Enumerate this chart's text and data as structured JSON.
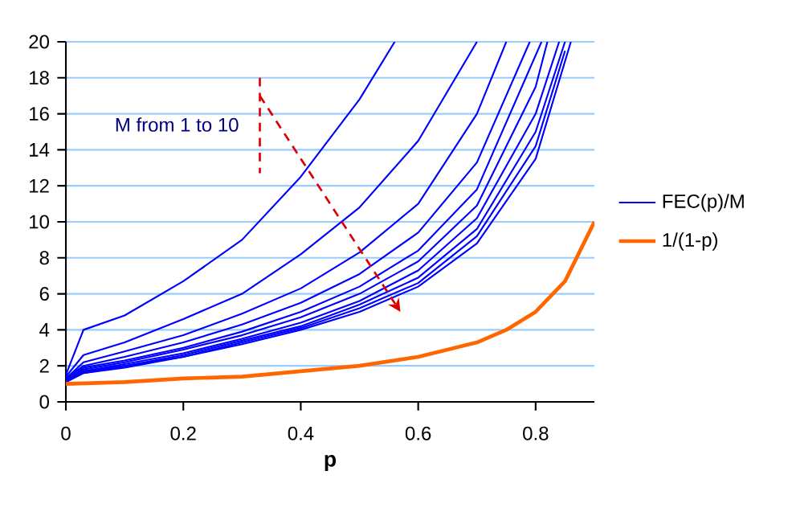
{
  "chart_data": {
    "type": "line",
    "xlabel": "p",
    "xlim": [
      0,
      0.9
    ],
    "ylim": [
      0,
      20
    ],
    "xticks": [
      0,
      0.2,
      0.4,
      0.6,
      0.8
    ],
    "yticks": [
      0,
      2,
      4,
      6,
      8,
      10,
      12,
      14,
      16,
      18,
      20
    ],
    "grid": "y",
    "legend": "right",
    "marker": "none",
    "line_style": "solid",
    "annotations": [
      "M from 1 to 10"
    ],
    "series": [
      {
        "name": "FEC(p)/M",
        "color": "#0000ff",
        "x": [
          0,
          0.03,
          0.1,
          0.2,
          0.3,
          0.4,
          0.5,
          0.56
        ],
        "values": [
          1.5,
          4.0,
          4.8,
          6.7,
          9.0,
          12.5,
          16.8,
          20
        ]
      },
      {
        "color": "#0000ff",
        "x": [
          0,
          0.03,
          0.1,
          0.2,
          0.3,
          0.4,
          0.5,
          0.6,
          0.7
        ],
        "values": [
          1.4,
          2.6,
          3.3,
          4.6,
          6.0,
          8.2,
          10.8,
          14.5,
          20
        ]
      },
      {
        "color": "#0000ff",
        "x": [
          0,
          0.03,
          0.1,
          0.2,
          0.3,
          0.4,
          0.5,
          0.6,
          0.7,
          0.75
        ],
        "values": [
          1.3,
          2.2,
          2.8,
          3.7,
          4.9,
          6.3,
          8.3,
          11.0,
          16.0,
          20
        ]
      },
      {
        "color": "#0000ff",
        "x": [
          0,
          0.03,
          0.1,
          0.2,
          0.3,
          0.4,
          0.5,
          0.6,
          0.7,
          0.79
        ],
        "values": [
          1.3,
          2.0,
          2.5,
          3.3,
          4.3,
          5.5,
          7.1,
          9.4,
          13.3,
          20
        ]
      },
      {
        "color": "#0000ff",
        "x": [
          0,
          0.03,
          0.1,
          0.2,
          0.3,
          0.4,
          0.5,
          0.6,
          0.7,
          0.81
        ],
        "values": [
          1.2,
          1.9,
          2.3,
          3.0,
          3.9,
          5.0,
          6.4,
          8.4,
          11.8,
          20
        ]
      },
      {
        "color": "#0000ff",
        "x": [
          0,
          0.03,
          0.1,
          0.2,
          0.3,
          0.4,
          0.5,
          0.6,
          0.7,
          0.8,
          0.82
        ],
        "values": [
          1.2,
          1.8,
          2.2,
          2.9,
          3.7,
          4.7,
          6.0,
          7.8,
          10.9,
          17.5,
          20
        ]
      },
      {
        "color": "#0000ff",
        "x": [
          0,
          0.03,
          0.1,
          0.2,
          0.3,
          0.4,
          0.5,
          0.6,
          0.7,
          0.8,
          0.84
        ],
        "values": [
          1.2,
          1.7,
          2.1,
          2.7,
          3.5,
          4.4,
          5.6,
          7.3,
          10.2,
          16.0,
          20
        ]
      },
      {
        "color": "#0000ff",
        "x": [
          0,
          0.03,
          0.1,
          0.2,
          0.3,
          0.4,
          0.5,
          0.6,
          0.7,
          0.8,
          0.85
        ],
        "values": [
          1.1,
          1.7,
          2.0,
          2.6,
          3.4,
          4.2,
          5.4,
          6.9,
          9.6,
          15.0,
          20
        ]
      },
      {
        "color": "#0000ff",
        "x": [
          0,
          0.03,
          0.1,
          0.2,
          0.3,
          0.4,
          0.5,
          0.6,
          0.7,
          0.8,
          0.85
        ],
        "values": [
          1.1,
          1.6,
          2.0,
          2.5,
          3.3,
          4.1,
          5.2,
          6.6,
          9.2,
          14.2,
          19.5
        ]
      },
      {
        "color": "#0000ff",
        "x": [
          0,
          0.03,
          0.1,
          0.2,
          0.3,
          0.4,
          0.5,
          0.6,
          0.7,
          0.8,
          0.86
        ],
        "values": [
          1.1,
          1.6,
          1.9,
          2.5,
          3.2,
          4.0,
          5.0,
          6.4,
          8.8,
          13.5,
          20
        ]
      },
      {
        "name": "1/(1-p)",
        "color": "#ff6600",
        "x": [
          0,
          0.1,
          0.2,
          0.3,
          0.4,
          0.5,
          0.6,
          0.7,
          0.75,
          0.8,
          0.85,
          0.9
        ],
        "values": [
          1,
          1.1,
          1.3,
          1.4,
          1.7,
          2,
          2.5,
          3.3,
          4,
          5,
          6.7,
          10
        ]
      }
    ]
  }
}
